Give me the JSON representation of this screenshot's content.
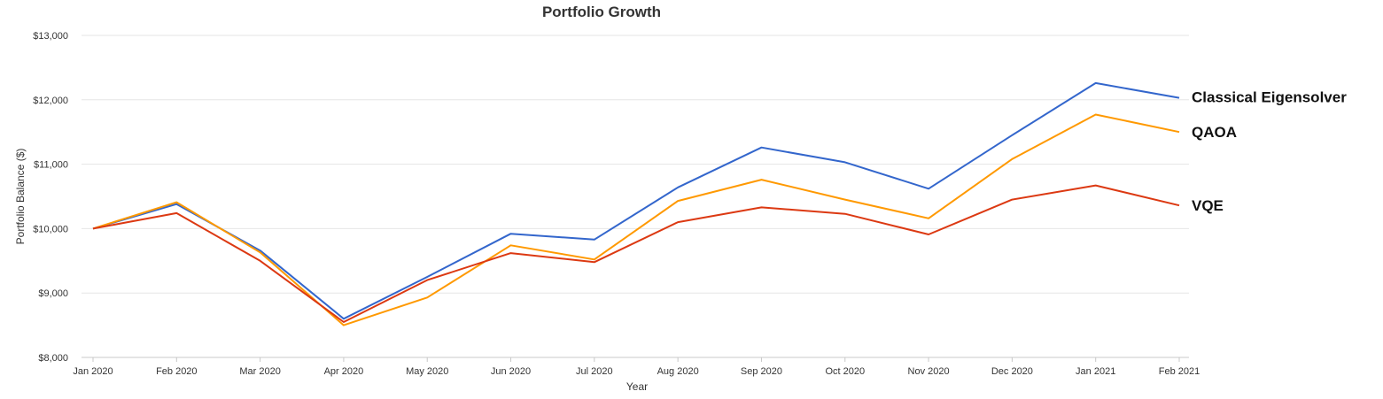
{
  "chart_data": {
    "type": "line",
    "title": "Portfolio Growth",
    "xlabel": "Year",
    "ylabel": "Portfolio Balance ($)",
    "categories": [
      "Jan 2020",
      "Feb 2020",
      "Mar 2020",
      "Apr 2020",
      "May 2020",
      "Jun 2020",
      "Jul 2020",
      "Aug 2020",
      "Sep 2020",
      "Oct 2020",
      "Nov 2020",
      "Dec 2020",
      "Jan 2021",
      "Feb 2021"
    ],
    "ylim": [
      8000,
      13000
    ],
    "yticks": [
      8000,
      9000,
      10000,
      11000,
      12000,
      13000
    ],
    "ytick_labels": [
      "$8,000",
      "$9,000",
      "$10,000",
      "$11,000",
      "$12,000",
      "$13,000"
    ],
    "grid": true,
    "legend": "labels at line ends (right)",
    "series": [
      {
        "name": "Classical Eigensolver",
        "color": "#3366cc",
        "values": [
          10000,
          10380,
          9660,
          8600,
          9250,
          9920,
          9830,
          10640,
          11260,
          11030,
          10620,
          11450,
          12260,
          12030
        ]
      },
      {
        "name": "QAOA",
        "color": "#ff9900",
        "values": [
          10000,
          10410,
          9630,
          8500,
          8930,
          9740,
          9520,
          10430,
          10760,
          10450,
          10160,
          11080,
          11770,
          11500
        ]
      },
      {
        "name": "VQE",
        "color": "#dc3912",
        "values": [
          10000,
          10240,
          9500,
          8550,
          9200,
          9620,
          9480,
          10100,
          10330,
          10230,
          9910,
          10450,
          10670,
          10360
        ]
      }
    ]
  }
}
